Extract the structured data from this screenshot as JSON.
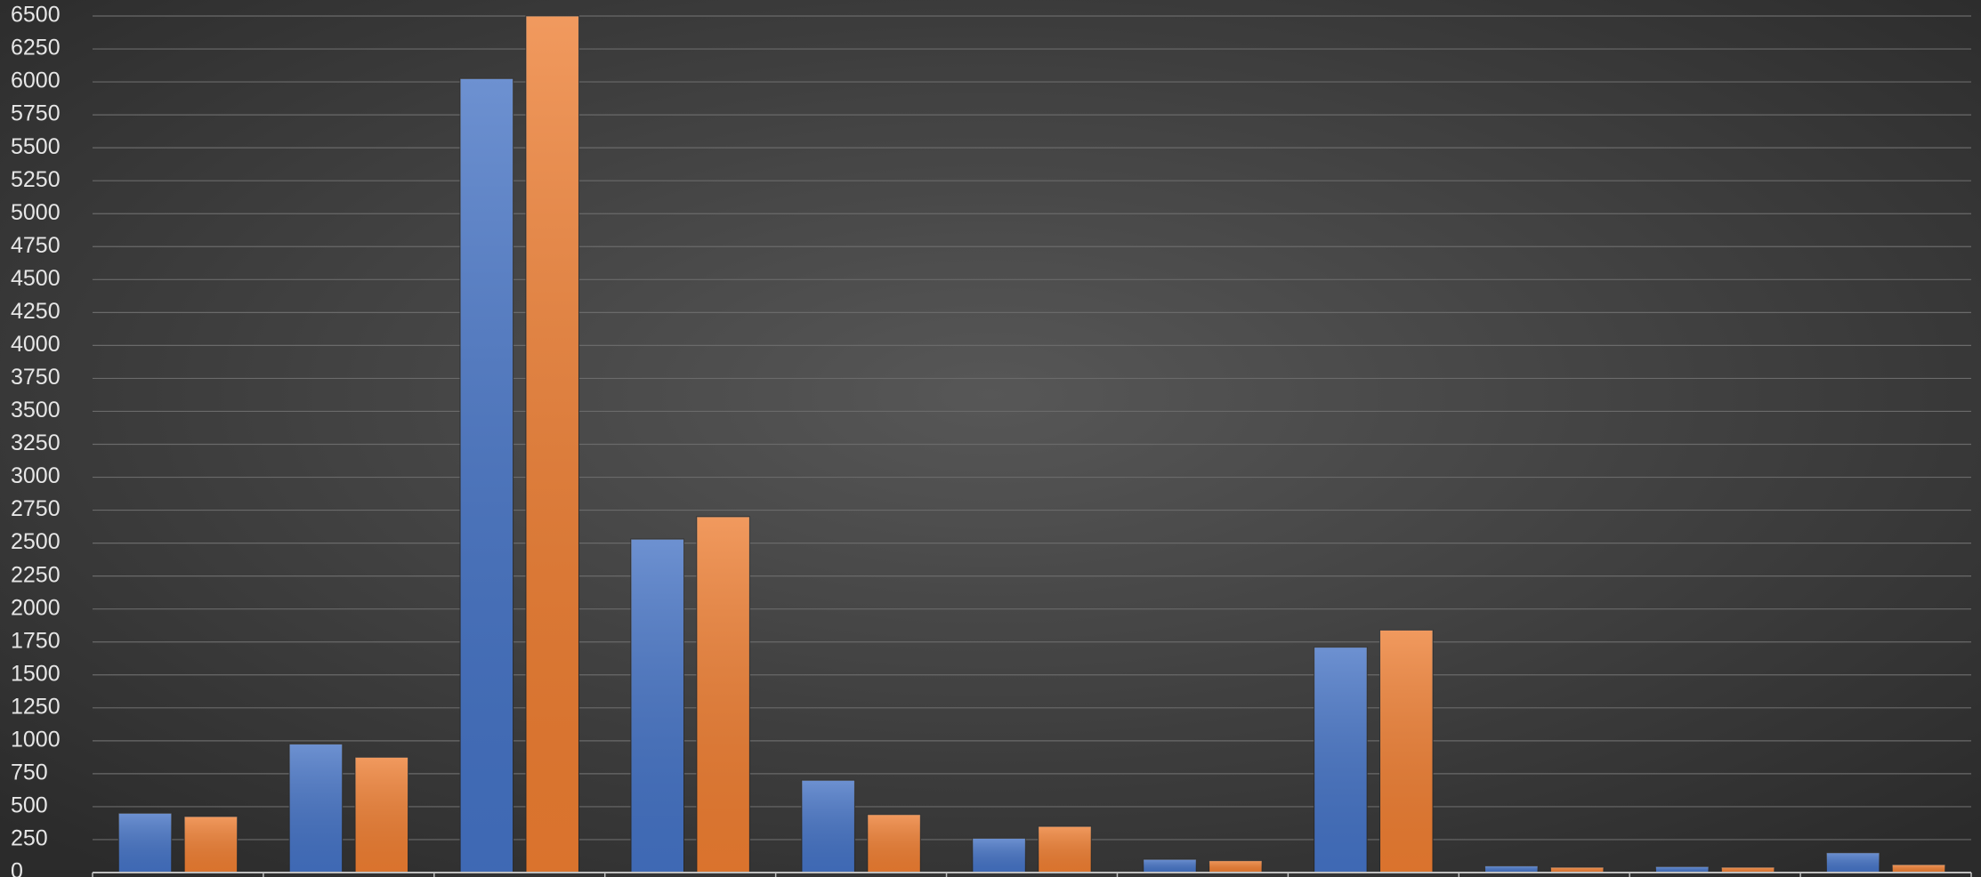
{
  "chart_data": {
    "type": "bar",
    "categories": [
      null,
      null,
      null,
      null,
      null,
      null,
      null,
      null,
      null,
      null,
      null
    ],
    "series": [
      {
        "color": "#4472c4",
        "values": [
          450,
          975,
          6025,
          2530,
          700,
          260,
          100,
          1710,
          50,
          45,
          150
        ]
      },
      {
        "color": "#ed7d31",
        "values": [
          425,
          875,
          6500,
          2700,
          440,
          350,
          90,
          1840,
          40,
          40,
          60
        ]
      }
    ],
    "ylim": [
      0,
      6500
    ],
    "yticks": [
      0,
      250,
      500,
      750,
      1000,
      1250,
      1500,
      1750,
      2000,
      2250,
      2500,
      2750,
      3000,
      3250,
      3500,
      3750,
      4000,
      4250,
      4500,
      4750,
      5000,
      5250,
      5500,
      5750,
      6000,
      6250,
      6500
    ],
    "grid": true
  }
}
